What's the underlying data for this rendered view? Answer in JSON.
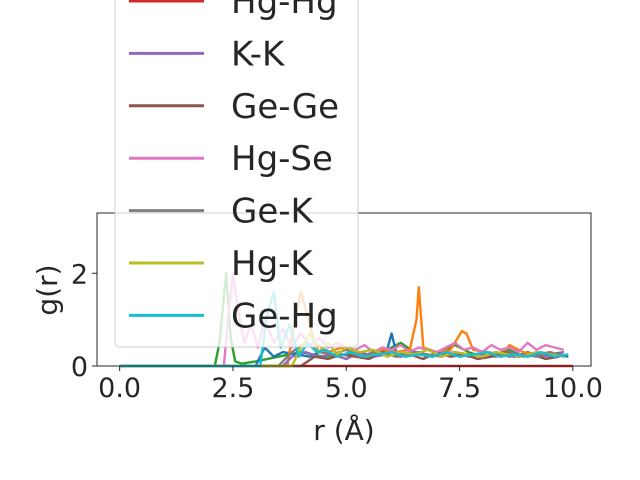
{
  "chart_data": {
    "type": "line",
    "xlabel": "r (Å)",
    "ylabel": "g(r)",
    "xlim": [
      -0.5,
      10.4
    ],
    "ylim": [
      0,
      3.3
    ],
    "xticks": [
      "0.0",
      "2.5",
      "5.0",
      "7.5",
      "10.0"
    ],
    "xtick_values": [
      0,
      2.5,
      5,
      7.5,
      10
    ],
    "yticks": [
      "0",
      "2"
    ],
    "ytick_values": [
      0,
      2
    ],
    "grid": false,
    "legend_position": "upper-left",
    "series": [
      {
        "name": "",
        "color": "#2ca02c",
        "x": [
          0,
          2.1,
          2.2,
          2.35,
          2.45,
          2.55,
          2.7,
          3.0,
          3.5,
          4.0,
          4.5,
          5.0,
          5.3,
          5.6,
          5.9,
          6.2,
          6.5,
          6.8,
          7.1,
          7.4,
          7.7,
          8.0,
          8.3,
          8.6,
          8.9,
          9.2,
          9.5,
          9.8
        ],
        "y": [
          0,
          0,
          0.5,
          2.0,
          0.6,
          0.1,
          0.05,
          0.1,
          0.2,
          0.3,
          0.2,
          0.25,
          0.3,
          0.2,
          0.35,
          0.5,
          0.3,
          0.2,
          0.3,
          0.45,
          0.3,
          0.2,
          0.25,
          0.35,
          0.2,
          0.3,
          0.25,
          0.3
        ]
      },
      {
        "name": "",
        "color": "#1f77b4",
        "x": [
          0,
          3.0,
          3.2,
          3.4,
          3.6,
          3.9,
          4.2,
          4.5,
          4.8,
          5.1,
          5.4,
          5.7,
          5.9,
          6.0,
          6.1,
          6.3,
          6.6,
          6.9,
          7.2,
          7.5,
          7.8,
          8.1,
          8.4,
          8.7,
          9.0,
          9.3,
          9.6,
          9.9
        ],
        "y": [
          0,
          0,
          0.4,
          0.2,
          0.3,
          0.25,
          0.2,
          0.35,
          0.2,
          0.3,
          0.2,
          0.3,
          0.35,
          0.7,
          0.3,
          0.25,
          0.3,
          0.2,
          0.3,
          0.25,
          0.2,
          0.3,
          0.25,
          0.2,
          0.3,
          0.2,
          0.25,
          0.2
        ]
      },
      {
        "name": "",
        "color": "#ff7f0e",
        "x": [
          0,
          3.7,
          3.85,
          4.0,
          4.3,
          4.6,
          4.9,
          5.2,
          5.5,
          5.8,
          6.1,
          6.4,
          6.55,
          6.6,
          6.7,
          7.0,
          7.3,
          7.55,
          7.65,
          7.8,
          8.1,
          8.4,
          8.6,
          8.9,
          9.2,
          9.5,
          9.8
        ],
        "y": [
          0,
          0,
          0.9,
          1.6,
          0.5,
          0.3,
          0.4,
          0.3,
          0.2,
          0.35,
          0.3,
          0.35,
          1.0,
          1.7,
          0.4,
          0.3,
          0.35,
          0.75,
          0.7,
          0.35,
          0.3,
          0.2,
          0.45,
          0.3,
          0.25,
          0.3,
          0.2
        ]
      },
      {
        "name": "Hg-Hg",
        "color": "#d62728",
        "x": [
          0,
          10
        ],
        "y": [
          0,
          0
        ]
      },
      {
        "name": "K-K",
        "color": "#9467bd",
        "x": [
          0,
          3.6,
          3.8,
          4.1,
          4.4,
          4.7,
          5.0,
          5.3,
          5.6,
          5.9,
          6.2,
          6.5,
          6.8,
          7.1,
          7.4,
          7.7,
          8.0,
          8.3,
          8.6,
          8.9,
          9.2,
          9.5,
          9.8
        ],
        "y": [
          0,
          0,
          0.2,
          0.3,
          0.2,
          0.25,
          0.15,
          0.3,
          0.2,
          0.25,
          0.2,
          0.3,
          0.2,
          0.25,
          0.3,
          0.2,
          0.25,
          0.2,
          0.3,
          0.2,
          0.25,
          0.2,
          0.3
        ]
      },
      {
        "name": "Ge-Ge",
        "color": "#8c564b",
        "x": [
          0,
          4.0,
          4.3,
          4.6,
          4.9,
          5.2,
          5.5,
          5.8,
          6.1,
          6.4,
          6.7,
          7.0,
          7.3,
          7.6,
          7.9,
          8.2,
          8.5,
          8.8,
          9.1,
          9.4,
          9.7
        ],
        "y": [
          0,
          0,
          0.2,
          0.15,
          0.25,
          0.2,
          0.15,
          0.3,
          0.2,
          0.25,
          0.15,
          0.3,
          0.2,
          0.25,
          0.15,
          0.2,
          0.3,
          0.2,
          0.25,
          0.15,
          0.2
        ]
      },
      {
        "name": "Hg-Se",
        "color": "#e377c2",
        "x": [
          0,
          2.3,
          2.4,
          2.5,
          2.6,
          2.75,
          2.9,
          3.05,
          3.2,
          3.4,
          3.6,
          3.8,
          4.0,
          4.2,
          4.4,
          4.6,
          4.8,
          5.0,
          5.2,
          5.4,
          5.6,
          5.8,
          6.0,
          6.2,
          6.4,
          6.6,
          6.8,
          7.0,
          7.2,
          7.4,
          7.6,
          7.8,
          8.0,
          8.2,
          8.4,
          8.6,
          8.8,
          9.0,
          9.2,
          9.4,
          9.6,
          9.8
        ],
        "y": [
          0,
          0,
          1.1,
          2.0,
          1.3,
          0.5,
          0.9,
          0.4,
          1.0,
          0.5,
          0.8,
          0.4,
          0.7,
          0.45,
          0.6,
          0.4,
          0.5,
          0.4,
          0.35,
          0.45,
          0.3,
          0.4,
          0.35,
          0.45,
          0.3,
          0.4,
          0.35,
          0.3,
          0.4,
          0.5,
          0.35,
          0.4,
          0.3,
          0.45,
          0.35,
          0.4,
          0.3,
          0.5,
          0.35,
          0.45,
          0.4,
          0.35
        ]
      },
      {
        "name": "Ge-K",
        "color": "#7f7f7f",
        "x": [
          0,
          3.5,
          3.8,
          4.1,
          4.4,
          4.7,
          5.0,
          5.3,
          5.6,
          5.9,
          6.2,
          6.5,
          6.8,
          7.1,
          7.4,
          7.7,
          8.0,
          8.3,
          8.6,
          8.9,
          9.2,
          9.5,
          9.8
        ],
        "y": [
          0,
          0,
          0.3,
          0.5,
          0.3,
          0.25,
          0.35,
          0.2,
          0.3,
          0.25,
          0.2,
          0.3,
          0.25,
          0.2,
          0.3,
          0.25,
          0.2,
          0.3,
          0.2,
          0.25,
          0.2,
          0.3,
          0.2
        ]
      },
      {
        "name": "Hg-K",
        "color": "#bcbd22",
        "x": [
          0,
          3.8,
          4.0,
          4.2,
          4.4,
          4.6,
          4.8,
          5.0,
          5.3,
          5.6,
          5.9,
          6.2,
          6.5,
          6.8,
          7.1,
          7.4,
          7.7,
          8.0,
          8.3,
          8.6,
          8.9,
          9.2,
          9.5,
          9.8
        ],
        "y": [
          0,
          0,
          0.4,
          0.7,
          0.3,
          0.5,
          0.25,
          0.4,
          0.3,
          0.35,
          0.2,
          0.3,
          0.25,
          0.35,
          0.2,
          0.3,
          0.25,
          0.2,
          0.3,
          0.25,
          0.2,
          0.3,
          0.25,
          0.2
        ]
      },
      {
        "name": "Ge-Hg",
        "color": "#17becf",
        "x": [
          0,
          3.1,
          3.25,
          3.4,
          3.55,
          3.75,
          3.95,
          4.15,
          4.35,
          4.55,
          4.8,
          5.1,
          5.4,
          5.7,
          6.0,
          6.3,
          6.6,
          6.9,
          7.2,
          7.5,
          7.8,
          8.1,
          8.4,
          8.7,
          9.0,
          9.3,
          9.6,
          9.9
        ],
        "y": [
          0,
          0,
          1.1,
          1.6,
          0.4,
          0.9,
          0.2,
          0.5,
          0.3,
          0.35,
          0.2,
          0.3,
          0.2,
          0.25,
          0.3,
          0.2,
          0.25,
          0.2,
          0.3,
          0.2,
          0.25,
          0.3,
          0.2,
          0.25,
          0.2,
          0.3,
          0.2,
          0.25
        ]
      }
    ]
  }
}
